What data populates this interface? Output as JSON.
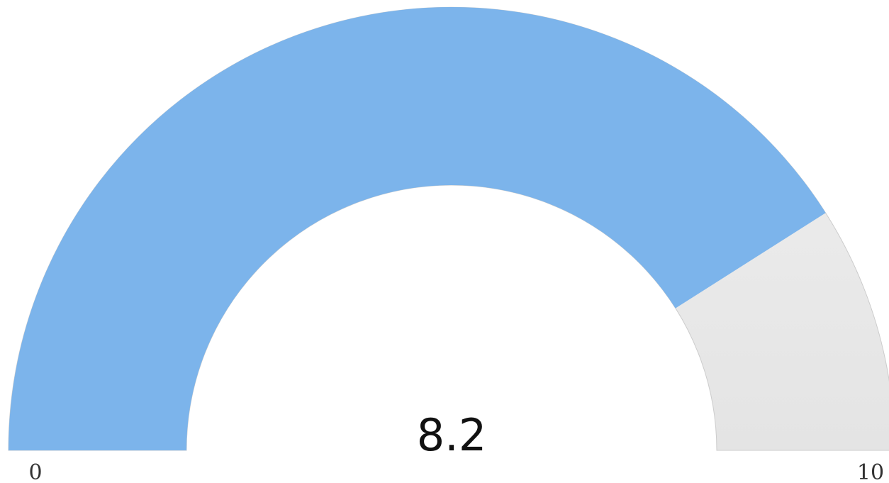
{
  "chart_data": {
    "type": "gauge",
    "value": 8.2,
    "value_label": "8.2",
    "min": 0,
    "max": 10,
    "min_label": "0",
    "max_label": "10",
    "colors": {
      "fill": "#7cb4eb",
      "track_top": "#f0f0f0",
      "track_bottom": "#e4e4e4",
      "track_border": "#cccccc",
      "text": "#111111"
    }
  }
}
